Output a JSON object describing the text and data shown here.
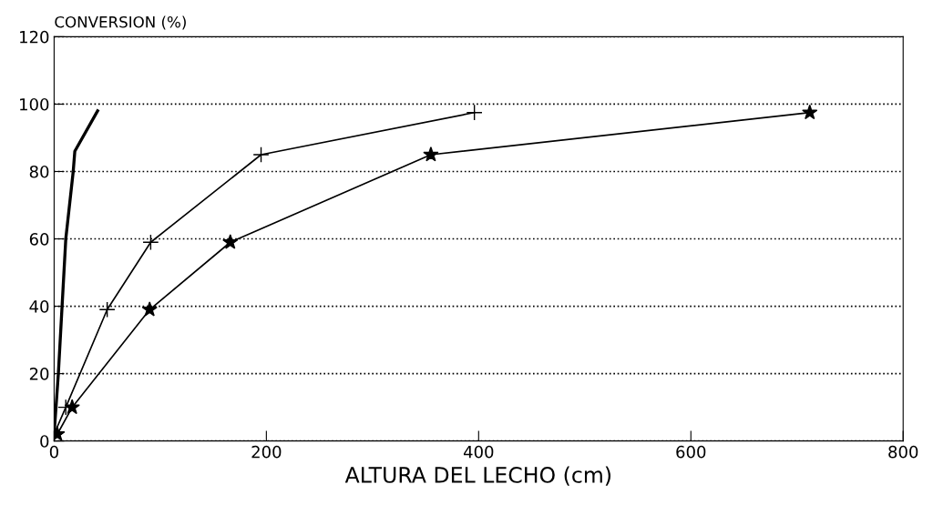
{
  "chart_data": {
    "type": "line",
    "xlabel": "ALTURA DEL LECHO (cm)",
    "ylabel": "CONVERSION (%)",
    "xlim": [
      0,
      800
    ],
    "xticks": [
      0,
      200,
      400,
      600,
      800
    ],
    "ylim": [
      0,
      120
    ],
    "yticks": [
      0,
      20,
      40,
      60,
      80,
      100,
      120
    ],
    "grid": "y",
    "legend": false,
    "series": [
      {
        "color": "#000000",
        "marker": "none",
        "x": [
          0,
          4,
          11,
          18,
          19.5,
          41
        ],
        "values": [
          2,
          20,
          60,
          80,
          86,
          98
        ]
      },
      {
        "color": "#000000",
        "marker": "cross",
        "x": [
          0,
          11,
          50,
          91,
          195,
          396
        ],
        "values": [
          2,
          10,
          39,
          59,
          85,
          97.5
        ]
      },
      {
        "color": "#000000",
        "marker": "star",
        "x": [
          3,
          17,
          90,
          166,
          355,
          712
        ],
        "values": [
          2,
          10,
          39,
          59,
          85,
          97.5
        ]
      }
    ]
  }
}
